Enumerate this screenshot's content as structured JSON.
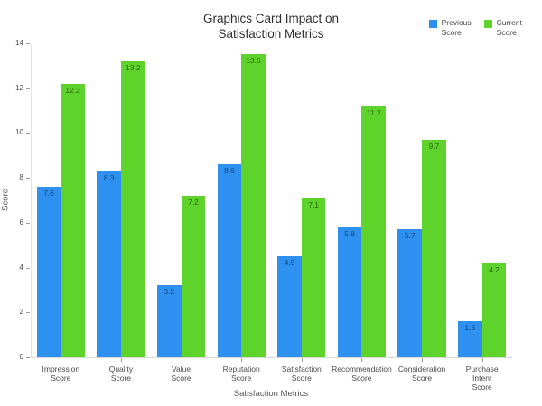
{
  "title": "Graphics Card Impact on\nSatisfaction Metrics",
  "chart_data": {
    "type": "bar",
    "title": "Graphics Card Impact on\nSatisfaction Metrics",
    "categories": [
      "Impression Score",
      "Quality Score",
      "Value Score",
      "Reputation Score",
      "Satisfaction Score",
      "Recommendation Score",
      "Consideration Score",
      "Purchase Intent Score"
    ],
    "series": [
      {
        "name": "Previous Score",
        "color": "#2e90f0",
        "label_color": "#17497a",
        "values": [
          7.6,
          8.3,
          3.2,
          8.6,
          4.5,
          5.8,
          5.7,
          1.6
        ]
      },
      {
        "name": "Current Score",
        "color": "#5ed32b",
        "label_color": "#2e690e",
        "values": [
          12.2,
          13.2,
          7.2,
          13.5,
          7.1,
          11.2,
          9.7,
          4.2
        ]
      }
    ],
    "xlabel": "Satisfaction Metrics",
    "ylabel": "Score",
    "ylim": [
      0,
      14
    ],
    "yticks": [
      0,
      2,
      4,
      6,
      8,
      10,
      12,
      14
    ],
    "grid": false,
    "legend_position": "top-right",
    "bar_value_labels": "inside-top"
  }
}
